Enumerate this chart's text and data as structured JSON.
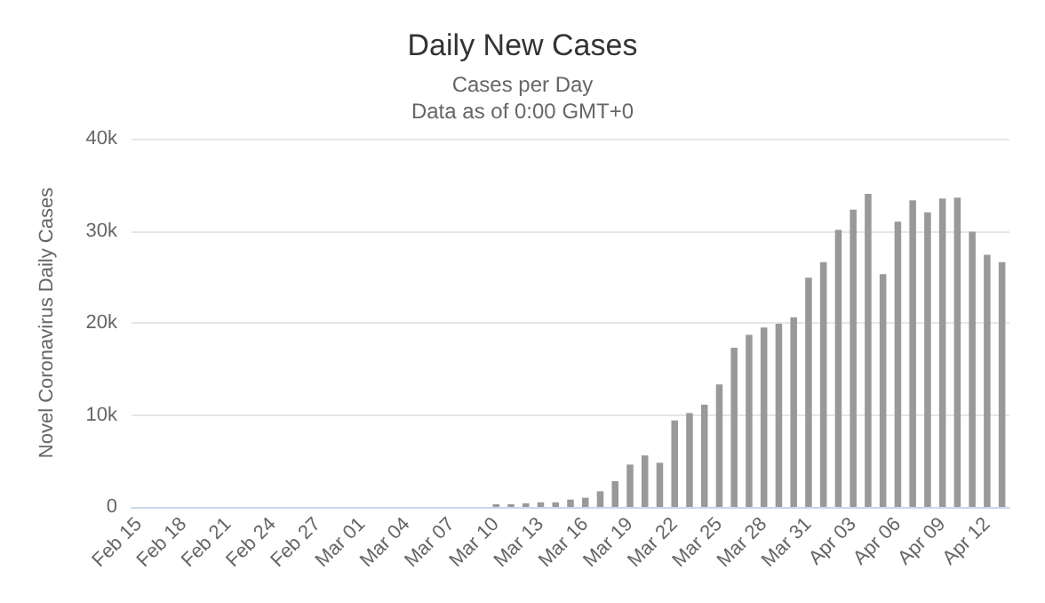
{
  "chart_data": {
    "type": "bar",
    "title": "Daily New Cases",
    "subtitle": "Cases per Day\nData as of 0:00 GMT+0",
    "ylabel": "Novel Coronavirus Daily Cases",
    "categories": [
      "Feb 15",
      null,
      null,
      "Feb 18",
      null,
      null,
      "Feb 21",
      null,
      null,
      "Feb 24",
      null,
      null,
      "Feb 27",
      null,
      null,
      "Mar 01",
      null,
      null,
      "Mar 04",
      null,
      null,
      "Mar 07",
      null,
      null,
      "Mar 10",
      null,
      null,
      "Mar 13",
      null,
      null,
      "Mar 16",
      null,
      null,
      "Mar 19",
      null,
      null,
      "Mar 22",
      null,
      null,
      "Mar 25",
      null,
      null,
      "Mar 28",
      null,
      null,
      "Mar 31",
      null,
      null,
      "Apr 03",
      null,
      null,
      "Apr 06",
      null,
      null,
      "Apr 09",
      null,
      null,
      "Apr 12",
      null
    ],
    "values": [
      0,
      0,
      0,
      0,
      0,
      0,
      0,
      0,
      0,
      0,
      0,
      0,
      0,
      0,
      0,
      0,
      0,
      0,
      0,
      0,
      0,
      0,
      0,
      0,
      300,
      300,
      400,
      500,
      500,
      800,
      1000,
      1700,
      2800,
      4600,
      5600,
      4800,
      9400,
      10200,
      11100,
      13300,
      17300,
      18700,
      19500,
      19900,
      20600,
      24900,
      26600,
      30100,
      32300,
      34000,
      25300,
      31000,
      33300,
      32000,
      33500,
      33600,
      29900,
      27400,
      26600
    ],
    "color": "#999999",
    "ylim": [
      0,
      40000
    ],
    "yticks": [
      {
        "value": 0,
        "label": "0"
      },
      {
        "value": 10000,
        "label": "10k"
      },
      {
        "value": 20000,
        "label": "20k"
      },
      {
        "value": 30000,
        "label": "30k"
      },
      {
        "value": 40000,
        "label": "40k"
      }
    ],
    "grid": "y"
  }
}
